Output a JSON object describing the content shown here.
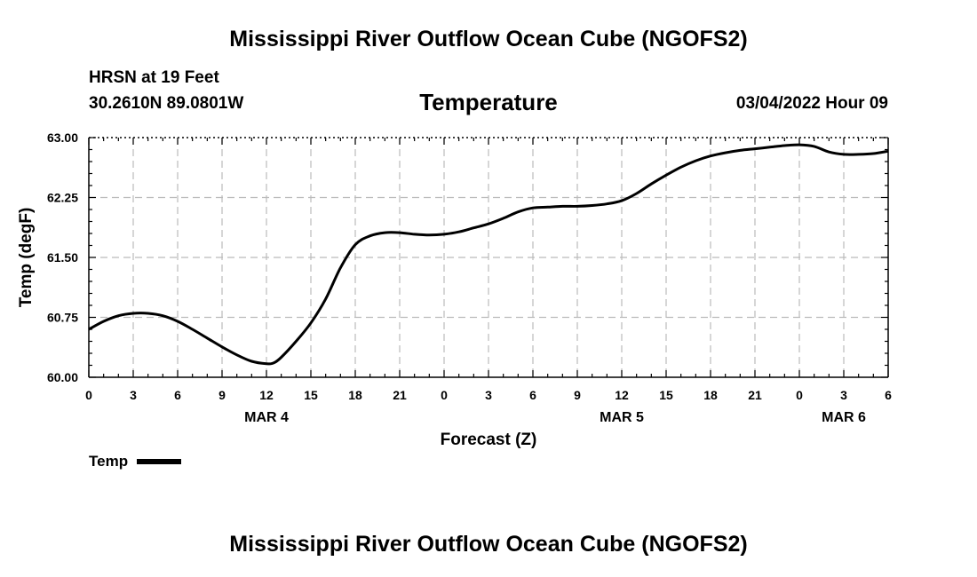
{
  "header": {
    "title": "Mississippi River Outflow Ocean Cube (NGOFS2)",
    "station": "HRSN at 19 Feet",
    "coords": "30.2610N  89.0801W",
    "subtitle": "Temperature",
    "run_time": "03/04/2022 Hour 09"
  },
  "footer": {
    "title": "Mississippi River Outflow Ocean Cube (NGOFS2)"
  },
  "legend": {
    "label": "Temp"
  },
  "chart_data": {
    "type": "line",
    "title": "Temperature",
    "xlabel": "Forecast (Z)",
    "ylabel": "Temp (degF)",
    "x_unit": "hours since 00Z MAR 4",
    "xlim": [
      0,
      54
    ],
    "ylim": [
      60.0,
      63.0
    ],
    "grid": true,
    "legend_position": "bottom-left",
    "x_ticks": [
      0,
      3,
      6,
      9,
      12,
      15,
      18,
      21,
      24,
      27,
      30,
      33,
      36,
      39,
      42,
      45,
      48,
      51,
      54
    ],
    "x_tick_labels": [
      "0",
      "3",
      "6",
      "9",
      "12",
      "15",
      "18",
      "21",
      "0",
      "3",
      "6",
      "9",
      "12",
      "15",
      "18",
      "21",
      "0",
      "3",
      "6"
    ],
    "y_ticks": [
      60.0,
      60.75,
      61.5,
      62.25,
      63.0
    ],
    "y_tick_labels": [
      "60.00",
      "60.75",
      "61.50",
      "62.25",
      "63.00"
    ],
    "date_labels": [
      {
        "x": 12,
        "label": "MAR 4"
      },
      {
        "x": 36,
        "label": "MAR 5"
      },
      {
        "x": 51,
        "label": "MAR 6"
      }
    ],
    "series": [
      {
        "name": "Temp",
        "color": "#000000",
        "x": [
          0,
          1,
          2,
          3,
          4,
          5,
          6,
          7,
          8,
          9,
          10,
          11,
          12,
          12.5,
          13,
          14,
          15,
          16,
          17,
          18,
          19,
          20,
          21,
          22,
          23,
          24,
          25,
          26,
          27,
          28,
          29,
          30,
          31,
          32,
          33,
          34,
          35,
          36,
          37,
          38,
          39,
          40,
          41,
          42,
          43,
          44,
          45,
          46,
          47,
          48,
          49,
          50,
          51,
          52,
          53,
          54
        ],
        "values": [
          60.6,
          60.7,
          60.77,
          60.8,
          60.8,
          60.77,
          60.7,
          60.6,
          60.49,
          60.38,
          60.28,
          60.2,
          60.17,
          60.18,
          60.25,
          60.45,
          60.68,
          60.98,
          61.37,
          61.66,
          61.77,
          61.81,
          61.81,
          61.79,
          61.78,
          61.79,
          61.82,
          61.87,
          61.92,
          61.99,
          62.07,
          62.12,
          62.13,
          62.14,
          62.14,
          62.15,
          62.17,
          62.21,
          62.3,
          62.42,
          62.53,
          62.63,
          62.71,
          62.77,
          62.81,
          62.84,
          62.86,
          62.88,
          62.9,
          62.91,
          62.89,
          62.82,
          62.79,
          62.79,
          62.8,
          62.83
        ]
      }
    ]
  }
}
